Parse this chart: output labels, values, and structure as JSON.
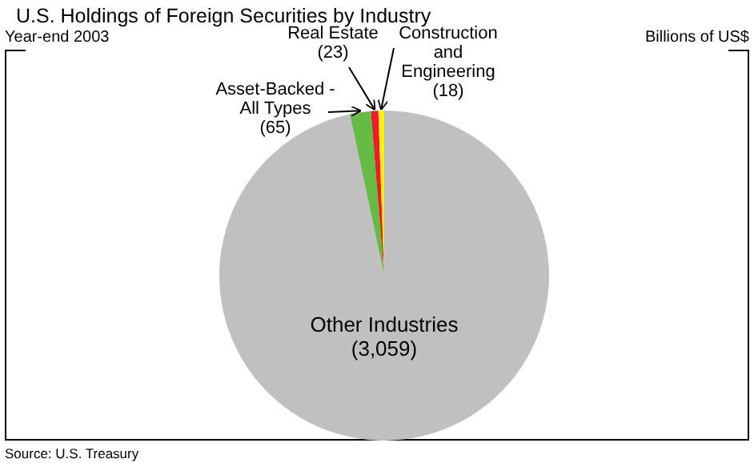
{
  "chart_data": {
    "type": "pie",
    "title": "U.S. Holdings of Foreign Securities by Industry",
    "subtitle": "Year-end 2003",
    "categories": [
      "Other Industries",
      "Asset-Backed - All Types",
      "Real Estate",
      "Construction and Engineering"
    ],
    "values": [
      3059,
      65,
      23,
      18
    ],
    "value_labels": [
      "(3,059)",
      "(65)",
      "(23)",
      "(18)"
    ],
    "colors": [
      "#c0c0c0",
      "#66bb44",
      "#ee1c24",
      "#fff200"
    ],
    "annotations": [
      "Billions of US$",
      "Source: U.S. Treasury"
    ]
  }
}
